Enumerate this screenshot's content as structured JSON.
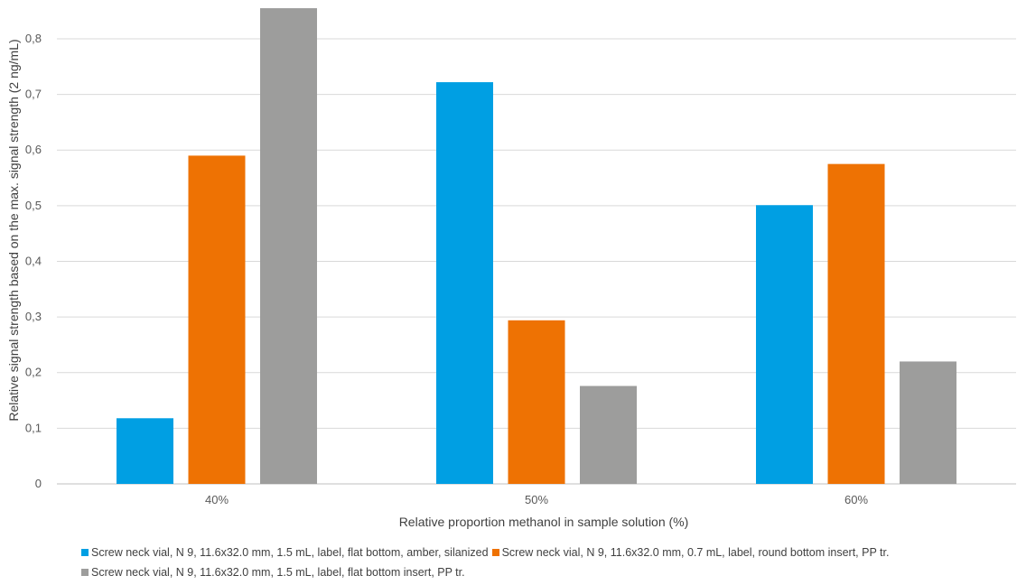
{
  "chart_data": {
    "type": "bar",
    "categories": [
      "40%",
      "50%",
      "60%"
    ],
    "series": [
      {
        "name": "Screw neck vial, N 9, 11.6x32.0 mm, 1.5 mL, label, flat bottom, amber, silanized",
        "color": "#009FE3",
        "values": [
          0.118,
          0.722,
          0.501
        ]
      },
      {
        "name": "Screw neck vial, N 9, 11.6x32.0 mm, 0.7 mL, label, round bottom insert, PP tr.",
        "color": "#EE7203",
        "values": [
          0.59,
          0.294,
          0.575
        ]
      },
      {
        "name": "Screw neck vial, N 9, 11.6x32.0 mm, 1.5 mL, label, flat bottom insert, PP tr.",
        "color": "#9D9D9C",
        "values": [
          0.855,
          0.176,
          0.22
        ]
      }
    ],
    "xlabel": "Relative proportion methanol in sample solution (%)",
    "ylabel": "Relative signal strength based on the max. signal strength (2 ng/mL)",
    "ylim": [
      0,
      0.86
    ],
    "yticks": [
      "0",
      "0,1",
      "0,2",
      "0,3",
      "0,4",
      "0,5",
      "0,6",
      "0,7",
      "0,8"
    ],
    "ytick_values": [
      0,
      0.1,
      0.2,
      0.3,
      0.4,
      0.5,
      0.6,
      0.7,
      0.8
    ],
    "grid": true,
    "legend_position": "bottom"
  }
}
